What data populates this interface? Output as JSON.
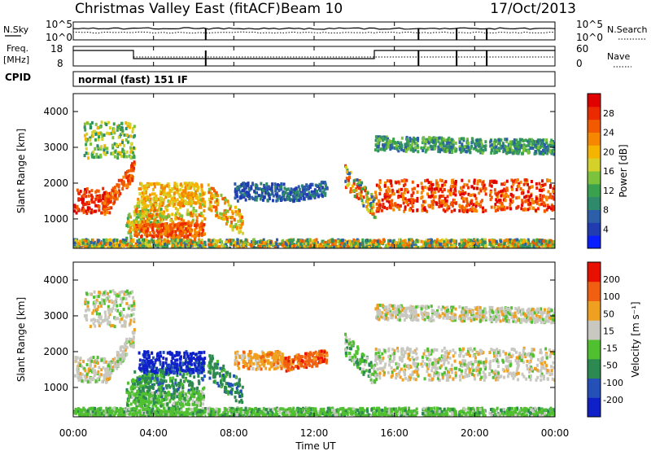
{
  "header": {
    "title": "Christmas Valley East (fitACF)",
    "beam": "Beam 10",
    "date": "17/Oct/2013"
  },
  "panels": {
    "nsky": {
      "left_label": "N.Sky",
      "left_ticks": [
        "10^5",
        "10^0"
      ],
      "right_ticks": [
        "10^5",
        "10^0"
      ],
      "right_label": "N.Search"
    },
    "freq": {
      "left_label_line1": "Freq.",
      "left_label_line2": "[MHz]",
      "left_ticks": [
        "18",
        "8"
      ],
      "right_ticks": [
        "60",
        "0"
      ],
      "right_label": "Nave"
    },
    "cpid": {
      "label": "CPID",
      "mode": "normal (fast) 151 IF"
    }
  },
  "chart_data": [
    {
      "type": "heatmap",
      "name": "power",
      "ylabel": "Slant Range [km]",
      "ylim": [
        180,
        4500
      ],
      "yticks": [
        1000,
        2000,
        3000,
        4000
      ],
      "xlim": [
        0,
        24
      ],
      "xticks": [
        "00:00",
        "04:00",
        "08:00",
        "12:00",
        "16:00",
        "20:00",
        "00:00"
      ],
      "colorbar": {
        "label": "Power [dB]",
        "range": [
          0,
          32
        ],
        "ticks": [
          "4",
          "8",
          "12",
          "16",
          "20",
          "24",
          "28"
        ],
        "colors": [
          "#0a1fff",
          "#203cb0",
          "#2c5fa8",
          "#2e8a6a",
          "#3aa24e",
          "#7cc23c",
          "#d4d22a",
          "#f5b400",
          "#f58800",
          "#f25a00",
          "#ec2a00",
          "#e00000"
        ]
      }
    },
    {
      "type": "heatmap",
      "name": "velocity",
      "ylabel": "Slant Range [km]",
      "ylim": [
        180,
        4500
      ],
      "yticks": [
        1000,
        2000,
        3000,
        4000
      ],
      "xlim": [
        0,
        24
      ],
      "xlabel": "Time UT",
      "xticks": [
        "00:00",
        "04:00",
        "08:00",
        "12:00",
        "16:00",
        "20:00",
        "00:00"
      ],
      "colorbar": {
        "label": "Velocity [m s⁻¹]",
        "ticks": [
          "200",
          "100",
          "50",
          "15",
          "-15",
          "-50",
          "-100",
          "-200"
        ],
        "colors": [
          "#1020c8",
          "#2450b8",
          "#2c8a50",
          "#50c030",
          "#c8c8c0",
          "#f0a020",
          "#f06010",
          "#e81000"
        ]
      }
    }
  ]
}
